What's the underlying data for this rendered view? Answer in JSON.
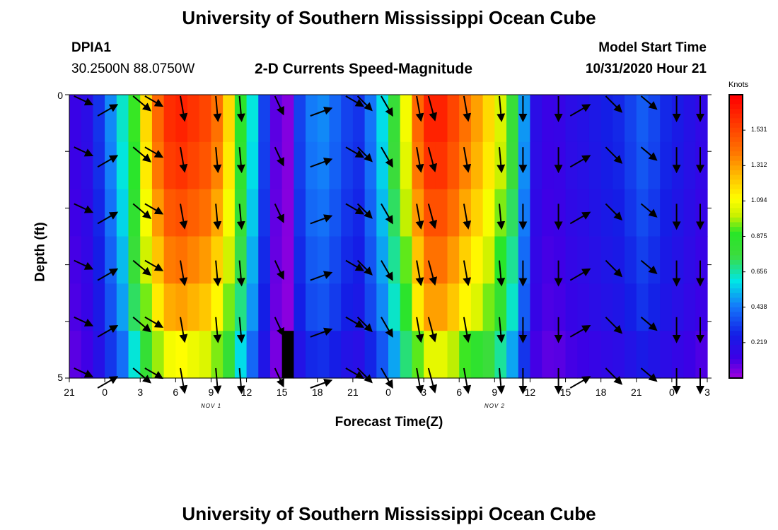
{
  "page": {
    "title_top": "University of Southern Mississippi Ocean Cube",
    "title_bottom": "University of Southern Mississippi Ocean Cube",
    "station": "DPIA1",
    "location": "30.2500N 88.0750W",
    "subtitle": "2-D Currents Speed-Magnitude",
    "model_start_label": "Model Start Time",
    "model_start_value": "10/31/2020 Hour 21"
  },
  "chart_data": {
    "type": "heatmap",
    "title": "2-D Currents Speed-Magnitude",
    "xlabel": "Forecast Time(Z)",
    "ylabel": "Depth (ft)",
    "x_start_hour": 21,
    "x_hours": 54,
    "x_ticks": [
      "21",
      "0",
      "3",
      "6",
      "9",
      "12",
      "15",
      "18",
      "21",
      "0",
      "3",
      "6",
      "9",
      "12",
      "15",
      "18",
      "21",
      "0",
      "3"
    ],
    "day_labels": [
      {
        "text": "NOV 1",
        "hour": 15
      },
      {
        "text": "NOV 2",
        "hour": 39
      }
    ],
    "y_ticks": [
      "0",
      "5"
    ],
    "ylim": [
      0,
      5
    ],
    "depth_rows": 5,
    "colorbar": {
      "title": "Knots",
      "ticks": [
        "1.531",
        "1.312",
        "1.094",
        "0.875",
        "0.656",
        "0.438",
        "0.219"
      ],
      "tick_values": [
        1.531,
        1.312,
        1.094,
        0.875,
        0.656,
        0.438,
        0.219
      ],
      "range": [
        0,
        1.75
      ]
    },
    "surface_speed_knots": [
      0.15,
      0.2,
      0.32,
      0.48,
      0.64,
      0.92,
      1.2,
      1.45,
      1.62,
      1.65,
      1.6,
      1.55,
      1.42,
      1.2,
      0.88,
      0.62,
      0.35,
      0.1,
      0.05,
      0.35,
      0.46,
      0.48,
      0.42,
      0.35,
      0.32,
      0.45,
      0.6,
      0.8,
      1.1,
      1.45,
      1.65,
      1.65,
      1.55,
      1.42,
      1.32,
      1.2,
      1.05,
      0.8,
      0.5,
      0.2,
      0.15,
      0.16,
      0.2,
      0.22,
      0.25,
      0.28,
      0.3,
      0.35,
      0.4,
      0.36,
      0.3,
      0.26,
      0.22,
      0.18
    ],
    "depth_factor": [
      1.0,
      0.97,
      0.92,
      0.86,
      0.8,
      0.68
    ],
    "lowest_band_lower_speed_from_hour": 38,
    "lowest_band_factor_after": 0.65,
    "data_gap": {
      "hour": 15,
      "from_row": 5
    },
    "vectors": {
      "hours": [
        22,
        24,
        27,
        28,
        31,
        34,
        36,
        39,
        42,
        45,
        46,
        48,
        51,
        52,
        55,
        58,
        60,
        63,
        64,
        67,
        70,
        73,
        75
      ],
      "angles_deg": [
        115,
        60,
        130,
        120,
        170,
        175,
        175,
        155,
        70,
        120,
        135,
        150,
        170,
        165,
        170,
        175,
        180,
        180,
        60,
        135,
        130,
        180,
        180
      ],
      "lengths_norm": [
        0.8,
        0.9,
        0.9,
        0.8,
        1.0,
        1.0,
        1.0,
        0.8,
        0.9,
        0.8,
        0.8,
        0.9,
        1.0,
        1.0,
        1.0,
        1.0,
        1.0,
        1.0,
        0.9,
        0.9,
        0.8,
        1.0,
        1.0
      ]
    }
  }
}
